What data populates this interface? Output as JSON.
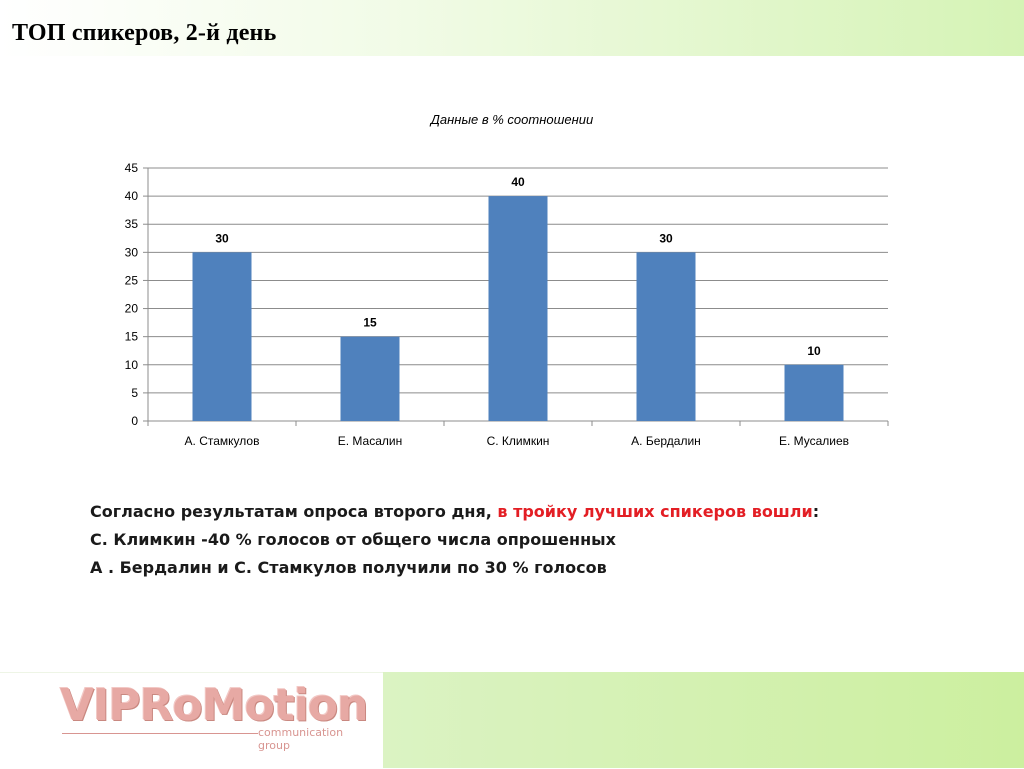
{
  "header": {
    "title": "ТОП спикеров,  2-й день"
  },
  "chart_data": {
    "type": "bar",
    "title": "Данные в % соотношении",
    "categories": [
      "А. Стамкулов",
      "Е. Масалин",
      "С. Климкин",
      "А. Бердалин",
      "Е. Мусалиев"
    ],
    "values": [
      30,
      15,
      40,
      30,
      10
    ],
    "ylim": [
      0,
      45
    ],
    "yticks": [
      0,
      5,
      10,
      15,
      20,
      25,
      30,
      35,
      40,
      45
    ],
    "data_labels": [
      "30",
      "15",
      "40",
      "30",
      "10"
    ],
    "xlabel": "",
    "ylabel": "",
    "grid": true,
    "legend": "none",
    "bar_color": "#4f81bd"
  },
  "summary": {
    "line1_part1": "Согласно результатам опроса второго дня, ",
    "line1_highlight": "в тройку лучших спикеров вошли",
    "line1_part2": ":",
    "line2": "С.  Климкин -40 % голосов от общего числа опрошенных",
    "line3": "А . Бердалин и С. Стамкулов получили по 30 %  голосов"
  },
  "footer": {
    "logo_main": "VIPRoMotion",
    "logo_sub": "communication group"
  },
  "colors": {
    "highlight": "#e31e24",
    "accent_green": "#ccef9f"
  }
}
